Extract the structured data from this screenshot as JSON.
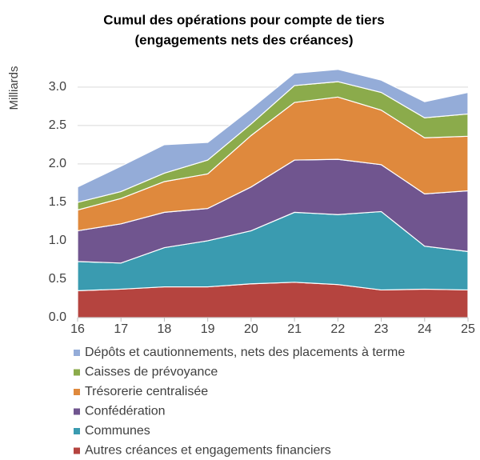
{
  "chart_data": {
    "type": "stacked_area",
    "title": [
      "Cumul des opérations pour compte de tiers",
      "(engagements nets des créances)"
    ],
    "y_label": "Milliards",
    "categories": [
      "16",
      "17",
      "18",
      "19",
      "20",
      "21",
      "22",
      "23",
      "24",
      "25"
    ],
    "series": [
      {
        "name": "Autres créances et engagements financiers",
        "color": "#b5443f",
        "values": [
          0.35,
          0.37,
          0.4,
          0.4,
          0.44,
          0.46,
          0.43,
          0.36,
          0.37,
          0.36
        ]
      },
      {
        "name": "Communes",
        "color": "#3a9bb0",
        "values": [
          0.38,
          0.34,
          0.51,
          0.6,
          0.69,
          0.91,
          0.91,
          1.02,
          0.56,
          0.5
        ]
      },
      {
        "name": "Confédération",
        "color": "#70558f",
        "values": [
          0.4,
          0.51,
          0.46,
          0.42,
          0.57,
          0.68,
          0.72,
          0.61,
          0.68,
          0.79
        ]
      },
      {
        "name": "Trésorerie centralisée",
        "color": "#df893d",
        "values": [
          0.27,
          0.33,
          0.4,
          0.45,
          0.67,
          0.75,
          0.81,
          0.71,
          0.73,
          0.71
        ]
      },
      {
        "name": "Caisses de prévoyance",
        "color": "#8bab4b",
        "values": [
          0.1,
          0.09,
          0.11,
          0.18,
          0.15,
          0.22,
          0.2,
          0.23,
          0.26,
          0.29
        ]
      },
      {
        "name": "Dépôts et cautionnements, nets des placements à terme",
        "color": "#94acd8",
        "values": [
          0.2,
          0.33,
          0.37,
          0.23,
          0.2,
          0.16,
          0.16,
          0.16,
          0.21,
          0.28
        ]
      }
    ],
    "ylim": [
      0,
      3.3
    ],
    "yticks": [
      {
        "value": 0,
        "label": "0.0"
      },
      {
        "value": 0.5,
        "label": "0.5"
      },
      {
        "value": 1,
        "label": "1.0"
      },
      {
        "value": 1.5,
        "label": "1.5"
      },
      {
        "value": 2,
        "label": "2.0"
      },
      {
        "value": 2.5,
        "label": "2.5"
      },
      {
        "value": 3,
        "label": "3.0"
      }
    ],
    "grid": true
  }
}
